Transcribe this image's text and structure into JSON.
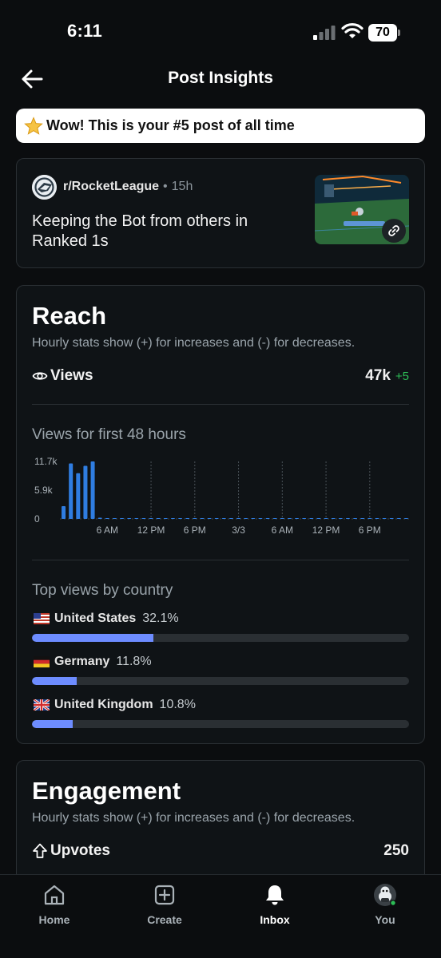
{
  "status_bar": {
    "time": "6:11",
    "battery": "70"
  },
  "header": {
    "title": "Post Insights"
  },
  "banner": {
    "text": "Wow! This is your #5 post of all time"
  },
  "post": {
    "subreddit": "r/RocketLeague",
    "separator": "•",
    "age": "15h",
    "title": "Keeping the Bot from others in Ranked 1s"
  },
  "reach": {
    "title": "Reach",
    "subtitle": "Hourly stats show (+) for increases and (-) for decreases.",
    "views_label": "Views",
    "views_value": "47k",
    "views_delta": "+5",
    "chart_title": "Views for first 48 hours",
    "countries_title": "Top views by country",
    "countries": [
      {
        "name": "United States",
        "pct": "32.1%",
        "fraction": 0.321
      },
      {
        "name": "Germany",
        "pct": "11.8%",
        "fraction": 0.118
      },
      {
        "name": "United Kingdom",
        "pct": "10.8%",
        "fraction": 0.108
      }
    ]
  },
  "engagement": {
    "title": "Engagement",
    "subtitle": "Hourly stats show (+) for increases and (-) for decreases.",
    "upvotes_label": "Upvotes",
    "upvotes_value": "250"
  },
  "nav": {
    "home": "Home",
    "create": "Create",
    "inbox": "Inbox",
    "you": "You"
  },
  "colors": {
    "accent_bar": "#2f7de1",
    "country_bar": "#6d8cff",
    "delta_green": "#2dbd56"
  },
  "chart_data": {
    "type": "bar",
    "title": "Views for first 48 hours",
    "y_tick_labels": [
      "11.7k",
      "5.9k",
      "0"
    ],
    "x_tick_labels": [
      "6 AM",
      "12 PM",
      "6 PM",
      "3/3",
      "6 AM",
      "12 PM",
      "6 PM"
    ],
    "ylim": [
      0,
      11700
    ],
    "values": [
      2600,
      11300,
      9300,
      10800,
      11700,
      250,
      60,
      40,
      30,
      20,
      20,
      20,
      20,
      20,
      20,
      20,
      20,
      20,
      20,
      20,
      20,
      20,
      20,
      20,
      20,
      20,
      20,
      20,
      20,
      20,
      20,
      20,
      20,
      20,
      20,
      20,
      20,
      20,
      20,
      20,
      20,
      20,
      20,
      20,
      20,
      20,
      20,
      20
    ],
    "grid": true
  }
}
